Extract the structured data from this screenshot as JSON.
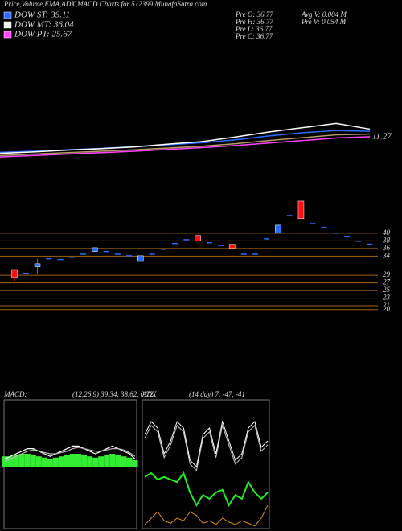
{
  "header": {
    "title": "Price,Volume,EMA,ADX,MACD Charts for 512399 MunafaSutra.com"
  },
  "legend": [
    {
      "name": "DOW ST: 39.11",
      "color": "#2a6cff"
    },
    {
      "name": "DOW MT: 36.04",
      "color": "#f0f0f0"
    },
    {
      "name": "DOW PT: 25.67",
      "color": "#ff44ff"
    }
  ],
  "info": [
    "Pre  O: 36.77",
    "Pre  H: 36.77",
    "Pre  L: 36.77",
    "Pre  C: 36.77"
  ],
  "info2": [
    "Avg V: 0.004  M",
    "Pre  V: 0.054  M"
  ],
  "chart_data": [
    {
      "type": "line",
      "ylim": [
        0,
        36
      ],
      "end_label": "11.27",
      "series": [
        {
          "color": "#2a6cff",
          "values": [
            6.9,
            7.2,
            7.6,
            8.0,
            8.5,
            9.0,
            9.6,
            10.4,
            11.5,
            12.4,
            13.0,
            12.8
          ]
        },
        {
          "color": "#ffffff",
          "values": [
            6.6,
            7.0,
            7.5,
            7.9,
            8.4,
            9.2,
            9.9,
            11.2,
            12.6,
            13.8,
            15.0,
            13.4
          ]
        },
        {
          "color": "#b59a6a",
          "values": [
            6.0,
            6.4,
            6.8,
            7.2,
            7.6,
            8.1,
            8.6,
            9.3,
            10.2,
            11.0,
            11.8,
            12.0
          ]
        },
        {
          "color": "#ff44ff",
          "values": [
            5.6,
            6.0,
            6.4,
            6.8,
            7.2,
            7.7,
            8.2,
            8.8,
            9.5,
            10.2,
            10.9,
            11.27
          ]
        }
      ]
    },
    {
      "type": "candlestick",
      "ylim": [
        16.8,
        50.5
      ],
      "up_color": "#2a6cff",
      "down_color": "#ff1010",
      "level_color": "#a5620c",
      "levels": [
        40,
        38,
        36,
        34,
        29,
        27,
        25,
        23,
        21,
        20
      ],
      "candles": [
        {
          "open": 30.5,
          "high": 30.5,
          "low": 27.4,
          "close": 28.4
        },
        {
          "open": 29.5,
          "high": 29.5,
          "low": 29.5,
          "close": 29.5
        },
        {
          "open": 31.2,
          "high": 33.3,
          "low": 29.5,
          "close": 32.0
        },
        {
          "open": 33.3,
          "high": 33.3,
          "low": 33.3,
          "close": 33.3
        },
        {
          "open": 33.1,
          "high": 33.1,
          "low": 33.1,
          "close": 33.1
        },
        {
          "open": 33.7,
          "high": 33.7,
          "low": 33.7,
          "close": 33.7
        },
        {
          "open": 34.5,
          "high": 34.5,
          "low": 34.5,
          "close": 34.5
        },
        {
          "open": 35.2,
          "high": 36.2,
          "low": 35.2,
          "close": 36.2
        },
        {
          "open": 35.2,
          "high": 35.2,
          "low": 35.2,
          "close": 35.2
        },
        {
          "open": 34.5,
          "high": 34.5,
          "low": 34.5,
          "close": 34.5
        },
        {
          "open": 34.1,
          "high": 34.1,
          "low": 34.1,
          "close": 34.1
        },
        {
          "open": 32.6,
          "high": 34.1,
          "low": 32.6,
          "close": 34.1
        },
        {
          "open": 34.5,
          "high": 34.5,
          "low": 34.5,
          "close": 34.5
        },
        {
          "open": 35.8,
          "high": 35.8,
          "low": 35.8,
          "close": 35.8
        },
        {
          "open": 37.3,
          "high": 37.3,
          "low": 37.3,
          "close": 37.3
        },
        {
          "open": 38.3,
          "high": 38.3,
          "low": 38.3,
          "close": 38.3
        },
        {
          "open": 39.4,
          "high": 39.4,
          "low": 37.9,
          "close": 37.9
        },
        {
          "open": 37.5,
          "high": 37.5,
          "low": 37.5,
          "close": 37.5
        },
        {
          "open": 36.8,
          "high": 36.8,
          "low": 36.8,
          "close": 36.8
        },
        {
          "open": 37.1,
          "high": 37.1,
          "low": 36.0,
          "close": 36.0
        },
        {
          "open": 34.5,
          "high": 34.5,
          "low": 34.5,
          "close": 34.5
        },
        {
          "open": 34.5,
          "high": 34.5,
          "low": 34.5,
          "close": 34.5
        },
        {
          "open": 38.5,
          "high": 38.5,
          "low": 38.5,
          "close": 38.5
        },
        {
          "open": 40,
          "high": 42.1,
          "low": 40,
          "close": 42.1
        },
        {
          "open": 44.6,
          "high": 44.6,
          "low": 44.6,
          "close": 44.6
        },
        {
          "open": 48.4,
          "high": 48.4,
          "low": 43.8,
          "close": 43.8
        },
        {
          "open": 42.5,
          "high": 42.5,
          "low": 42.5,
          "close": 42.5
        },
        {
          "open": 41.5,
          "high": 41.5,
          "low": 41.5,
          "close": 41.5
        },
        {
          "open": 40,
          "high": 40,
          "low": 40,
          "close": 40
        },
        {
          "open": 39.2,
          "high": 39.2,
          "low": 39.2,
          "close": 39.2
        },
        {
          "open": 37.9,
          "high": 37.9,
          "low": 37.9,
          "close": 37.9
        },
        {
          "open": 37.1,
          "high": 37.1,
          "low": 37.1,
          "close": 37.1
        }
      ]
    },
    {
      "type": "macd",
      "title": "MACD:",
      "params": "(12,26,9) 39.34, 38.62, 0.72",
      "ylim": [
        -25,
        25
      ],
      "hist_color": "#33ee33",
      "series": [
        {
          "color": "#ffffff",
          "values": [
            3,
            4,
            5,
            6,
            7,
            7,
            6,
            5,
            4,
            5,
            6,
            7,
            8,
            8,
            7,
            6,
            5,
            6,
            7,
            8,
            7,
            6,
            5,
            3
          ]
        },
        {
          "color": "#bbbbbb",
          "values": [
            2,
            3,
            4,
            5,
            6,
            6.5,
            6,
            5.5,
            5,
            5,
            5.5,
            6,
            7,
            7.5,
            7,
            6.5,
            6,
            6,
            6.5,
            7,
            7,
            6.5,
            5.5,
            4
          ]
        }
      ],
      "histogram": [
        4,
        4,
        4.5,
        5,
        5,
        4.5,
        4,
        3.5,
        3,
        3.5,
        4,
        4.5,
        5,
        5,
        4.5,
        4,
        3.5,
        4,
        4.5,
        5,
        4.5,
        4,
        3.5,
        2.5
      ]
    },
    {
      "type": "adx",
      "title": "ADX",
      "params": "(14 day) 7, -47, -41",
      "ylim": [
        0,
        100
      ],
      "series": [
        {
          "color": "#ffffff",
          "values": [
            75,
            85,
            80,
            60,
            70,
            85,
            80,
            55,
            50,
            75,
            80,
            60,
            85,
            70,
            55,
            60,
            80,
            85,
            65,
            70
          ]
        },
        {
          "color": "#cccccc",
          "values": [
            72,
            82,
            77,
            57,
            67,
            82,
            77,
            52,
            47,
            72,
            77,
            57,
            82,
            67,
            52,
            57,
            77,
            82,
            62,
            67
          ]
        },
        {
          "color": "#22ee22",
          "values": [
            42,
            45,
            40,
            42,
            40,
            38,
            45,
            30,
            20,
            28,
            25,
            30,
            32,
            20,
            28,
            25,
            38,
            30,
            25,
            30
          ]
        },
        {
          "color": "#e08a1a",
          "values": [
            5,
            10,
            15,
            8,
            6,
            10,
            8,
            15,
            12,
            6,
            8,
            5,
            10,
            7,
            5,
            8,
            6,
            4,
            10,
            20
          ]
        }
      ]
    }
  ]
}
